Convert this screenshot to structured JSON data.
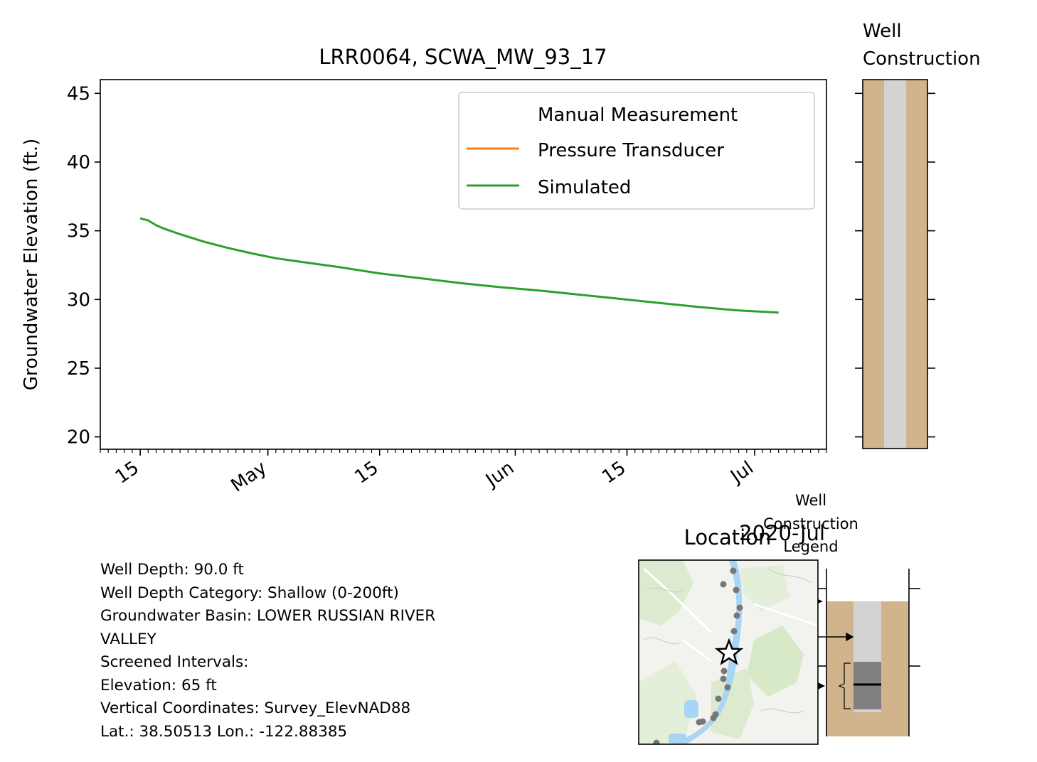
{
  "chart_data": {
    "type": "line",
    "title": "LRR0064, SCWA_MW_93_17",
    "ylabel": "Groundwater Elevation (ft.)",
    "xlabel": "",
    "ylim": [
      19.1,
      46
    ],
    "yticks": [
      20,
      25,
      30,
      35,
      40,
      45
    ],
    "xlim": [
      "2020-04-10",
      "2020-07-10"
    ],
    "xtick_labels": [
      {
        "date": "2020-04-15",
        "label": "15"
      },
      {
        "date": "2020-05-01",
        "label": "May"
      },
      {
        "date": "2020-05-15",
        "label": "15"
      },
      {
        "date": "2020-06-01",
        "label": "Jun"
      },
      {
        "date": "2020-06-15",
        "label": "15"
      },
      {
        "date": "2020-07-01",
        "label": "Jul"
      }
    ],
    "x_offset_label": "2020-Jul",
    "legend_position": "top-right",
    "legend": [
      {
        "name": "Manual Measurement",
        "color": "none"
      },
      {
        "name": "Pressure Transducer",
        "color": "#ff7f0e"
      },
      {
        "name": "Simulated",
        "color": "#2ca02c"
      }
    ],
    "series": [
      {
        "name": "Manual Measurement",
        "x": [],
        "y": []
      },
      {
        "name": "Pressure Transducer",
        "x": [],
        "y": []
      },
      {
        "name": "Simulated",
        "color": "#2ca02c",
        "x": [
          "2020-04-15",
          "2020-04-16",
          "2020-04-17",
          "2020-04-18",
          "2020-04-20",
          "2020-04-23",
          "2020-04-26",
          "2020-04-29",
          "2020-05-02",
          "2020-05-05",
          "2020-05-10",
          "2020-05-15",
          "2020-05-20",
          "2020-05-25",
          "2020-05-30",
          "2020-06-04",
          "2020-06-09",
          "2020-06-14",
          "2020-06-19",
          "2020-06-24",
          "2020-06-29",
          "2020-07-04"
        ],
        "y": [
          35.9,
          35.75,
          35.4,
          35.15,
          34.75,
          34.2,
          33.75,
          33.35,
          33.0,
          32.75,
          32.35,
          31.9,
          31.55,
          31.2,
          30.9,
          30.65,
          30.35,
          30.05,
          29.75,
          29.45,
          29.2,
          29.05
        ]
      }
    ]
  },
  "well_construction": {
    "title_line1": "Well",
    "title_line2": "Construction",
    "casing_color": "#d3d3d3",
    "soil_color": "#d2b48c"
  },
  "location": {
    "title": "Location",
    "map_water_color": "#a8d4f5",
    "map_green_color": "#cfe6c0",
    "well_marker": "star-icon"
  },
  "legend_panel": {
    "title_line1": "Well",
    "title_line2": "Construction",
    "title_line3": "Legend"
  },
  "info": {
    "well_depth": "Well Depth: 90.0 ft",
    "depth_category": "Well Depth Category: Shallow (0-200ft)",
    "basin_line1": "Groundwater Basin: LOWER RUSSIAN RIVER",
    "basin_line2": "VALLEY",
    "screened": "Screened Intervals:",
    "elevation": "Elevation: 65 ft",
    "vertical": "Vertical Coordinates: Survey_ElevNAD88",
    "latlon": "Lat.: 38.50513 Lon.: -122.88385"
  }
}
